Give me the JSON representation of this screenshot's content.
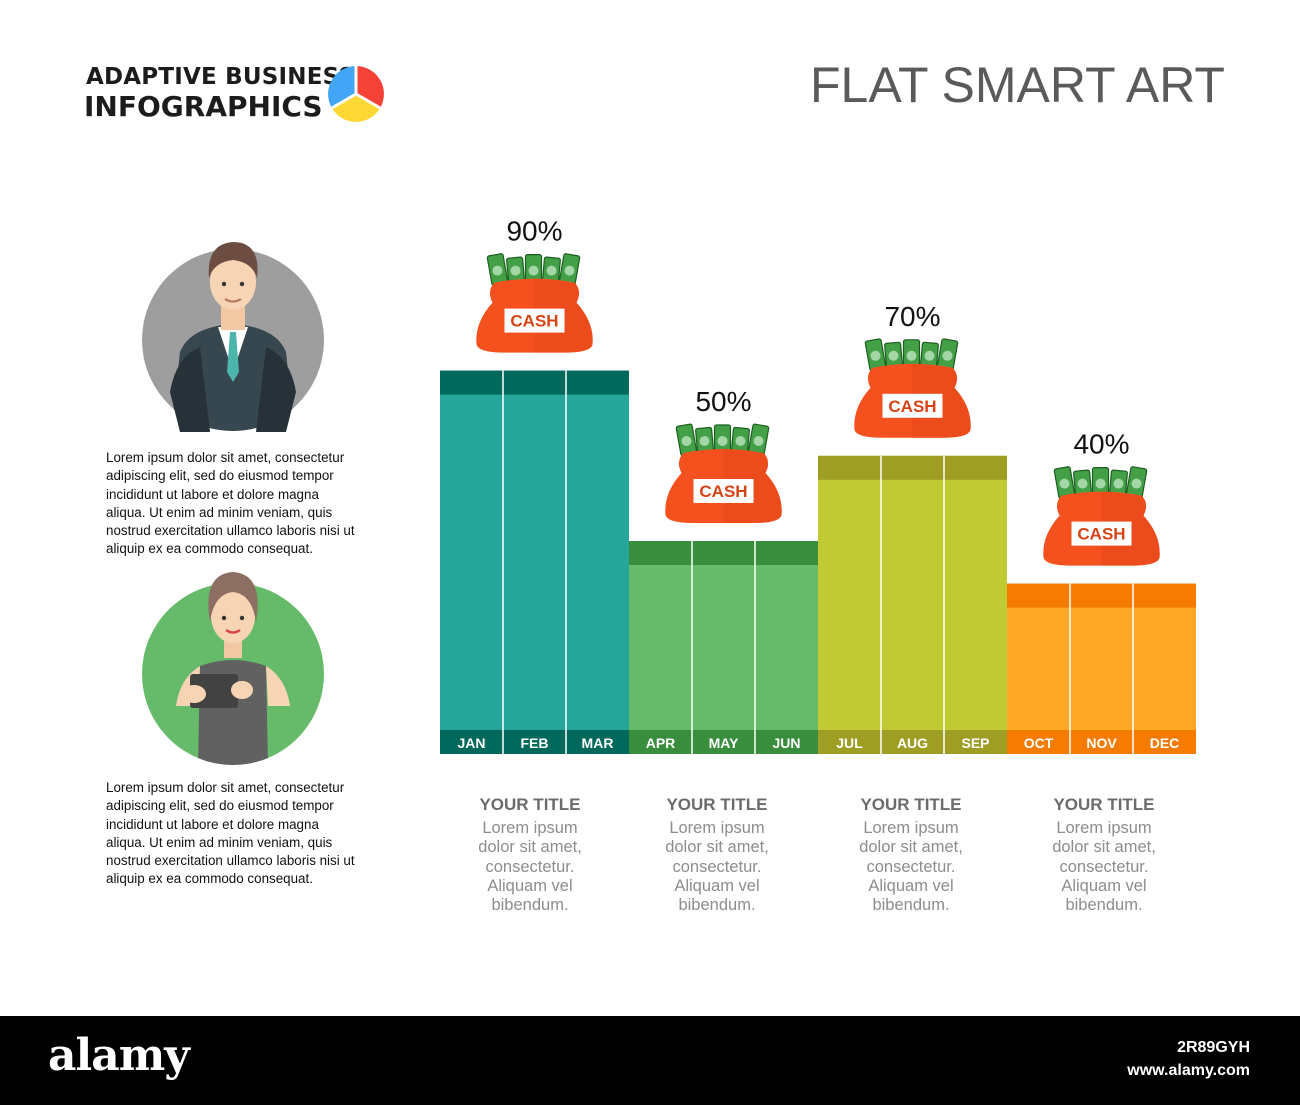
{
  "brand": {
    "line1": "ADAPTIVE BUSINESS",
    "line2": "INFOGRAPHICS"
  },
  "headline": "FLAT SMART ART",
  "paragraphs": [
    "Lorem ipsum dolor sit amet, consectetur adipiscing elit, sed do eiusmod tempor incididunt ut labore et dolore magna aliqua. Ut enim ad minim veniam, quis nostrud exercitation ullamco laboris nisi ut aliquip ex ea commodo consequat.",
    "Lorem ipsum dolor sit amet, consectetur adipiscing elit, sed do eiusmod tempor incididunt ut labore et dolore magna aliqua. Ut enim ad minim veniam, quis nostrud exercitation ullamco laboris nisi ut aliquip ex ea commodo consequat."
  ],
  "colors": {
    "teal": "#26a69a",
    "teal_dark": "#00695c",
    "green": "#66bb6a",
    "green_dark": "#388e3c",
    "lime": "#c0ca33",
    "lime_dark": "#9e9d24",
    "orange": "#ffa726",
    "orange_dark": "#f57c00",
    "bag": "#f4511e",
    "money": "#43a047"
  },
  "icons": [
    "pie-logo-icon",
    "businessman-avatar-icon",
    "businesswoman-avatar-icon",
    "cash-bag-icon"
  ],
  "cash_label": "CASH",
  "chart_data": {
    "type": "bar",
    "categories": [
      "JAN",
      "FEB",
      "MAR",
      "APR",
      "MAY",
      "JUN",
      "JUL",
      "AUG",
      "SEP",
      "OCT",
      "NOV",
      "DEC"
    ],
    "groups": [
      {
        "months": [
          "JAN",
          "FEB",
          "MAR"
        ],
        "value": 90,
        "label": "90%",
        "color": "teal"
      },
      {
        "months": [
          "APR",
          "MAY",
          "JUN"
        ],
        "value": 50,
        "label": "50%",
        "color": "green"
      },
      {
        "months": [
          "JUL",
          "AUG",
          "SEP"
        ],
        "value": 70,
        "label": "70%",
        "color": "lime"
      },
      {
        "months": [
          "OCT",
          "NOV",
          "DEC"
        ],
        "value": 40,
        "label": "40%",
        "color": "orange"
      }
    ],
    "ylim": [
      0,
      100
    ]
  },
  "captions": [
    {
      "title": "YOUR TITLE",
      "text": [
        "Lorem ipsum",
        "dolor sit amet,",
        "consectetur.",
        "Aliquam vel",
        "bibendum."
      ]
    },
    {
      "title": "YOUR TITLE",
      "text": [
        "Lorem ipsum",
        "dolor sit amet,",
        "consectetur.",
        "Aliquam vel",
        "bibendum."
      ]
    },
    {
      "title": "YOUR TITLE",
      "text": [
        "Lorem ipsum",
        "dolor sit amet,",
        "consectetur.",
        "Aliquam vel",
        "bibendum."
      ]
    },
    {
      "title": "YOUR TITLE",
      "text": [
        "Lorem ipsum",
        "dolor sit amet,",
        "consectetur.",
        "Aliquam vel",
        "bibendum."
      ]
    }
  ],
  "watermark": {
    "brand": "alamy",
    "image_id": "2R89GYH",
    "url": "www.alamy.com"
  }
}
